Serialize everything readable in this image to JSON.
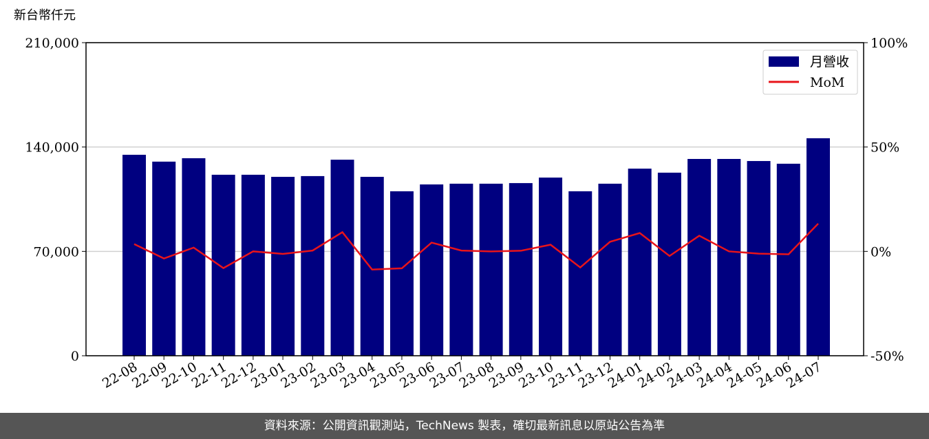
{
  "chart_data": {
    "type": "bar_line",
    "y_unit_label": "新台幣仟元",
    "categories": [
      "22-08",
      "22-09",
      "22-10",
      "22-11",
      "22-12",
      "23-01",
      "23-02",
      "23-03",
      "23-04",
      "23-05",
      "23-06",
      "23-07",
      "23-08",
      "23-09",
      "23-10",
      "23-11",
      "23-12",
      "24-01",
      "24-02",
      "24-03",
      "24-04",
      "24-05",
      "24-06",
      "24-07"
    ],
    "series": [
      {
        "name": "月營收",
        "color": "#000080",
        "type": "bar",
        "values": [
          134800,
          130200,
          132500,
          121400,
          121400,
          120000,
          120500,
          131500,
          120000,
          110300,
          114900,
          115400,
          115400,
          115800,
          119500,
          110300,
          115400,
          125500,
          122800,
          132000,
          132000,
          130600,
          128800,
          145900
        ]
      },
      {
        "name": "MoM",
        "color": "#e8141a",
        "type": "line",
        "axis": "y2",
        "values": [
          3.5,
          -3.4,
          1.8,
          -8.0,
          0.0,
          -1.2,
          0.4,
          9.2,
          -8.7,
          -8.1,
          4.2,
          0.4,
          0.0,
          0.3,
          3.2,
          -7.7,
          4.6,
          8.8,
          -2.2,
          7.5,
          0.0,
          -1.1,
          -1.4,
          13.3
        ]
      }
    ],
    "ylim": [
      0,
      210000
    ],
    "yticks": [
      {
        "value": 0,
        "label": "0"
      },
      {
        "value": 70000,
        "label": "70,000"
      },
      {
        "value": 140000,
        "label": "140,000"
      },
      {
        "value": 210000,
        "label": "210,000"
      }
    ],
    "y2lim": [
      -50,
      100
    ],
    "y2ticks": [
      {
        "value": -50,
        "label": "-50%"
      },
      {
        "value": 0,
        "label": "0%"
      },
      {
        "value": 50,
        "label": "50%"
      },
      {
        "value": 100,
        "label": "100%"
      }
    ],
    "grid": true,
    "legend": "upper right",
    "footer": "資料來源：公開資訊觀測站，TechNews 製表，確切最新訊息以原站公告為準"
  }
}
